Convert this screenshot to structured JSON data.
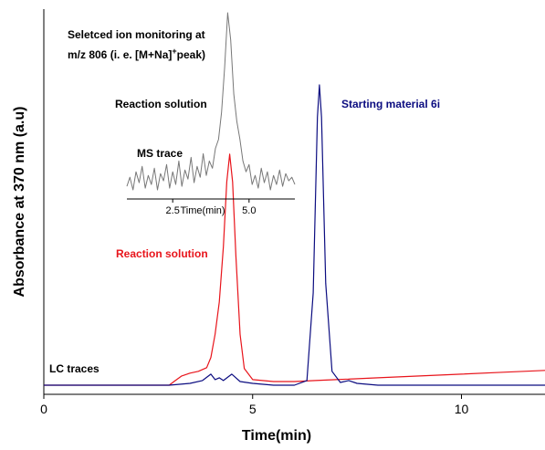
{
  "chart_data": [
    {
      "type": "line",
      "title": "",
      "xlabel": "Time(min)",
      "ylabel": "Absorbance at 370 nm (a.u)",
      "xlim": [
        0,
        12
      ],
      "x_ticks": [
        0,
        5,
        10
      ],
      "y_ticks": [],
      "grid": false,
      "legend": "none",
      "series": [
        {
          "name": "Reaction solution",
          "color": "#e8141b",
          "x": [
            0.0,
            1.0,
            2.0,
            3.0,
            3.15,
            3.3,
            3.5,
            3.7,
            3.9,
            4.0,
            4.1,
            4.2,
            4.3,
            4.38,
            4.45,
            4.52,
            4.6,
            4.7,
            4.8,
            5.0,
            5.5,
            6.0,
            6.5,
            7.0,
            8.0,
            9.0,
            10.0,
            11.0,
            12.0
          ],
          "y": [
            0.0,
            0.0,
            0.0,
            0.0,
            0.05,
            0.1,
            0.13,
            0.15,
            0.19,
            0.3,
            0.55,
            0.9,
            1.5,
            2.2,
            2.5,
            2.2,
            1.4,
            0.55,
            0.18,
            0.06,
            0.04,
            0.04,
            0.05,
            0.06,
            0.08,
            0.1,
            0.12,
            0.14,
            0.16
          ]
        },
        {
          "name": "Starting material 6i",
          "color": "#0b0c80",
          "x": [
            0.0,
            1.0,
            2.0,
            3.0,
            3.5,
            3.8,
            4.0,
            4.1,
            4.2,
            4.3,
            4.5,
            4.7,
            5.0,
            5.5,
            6.0,
            6.3,
            6.45,
            6.55,
            6.6,
            6.65,
            6.75,
            6.9,
            7.1,
            7.3,
            7.5,
            8.0,
            9.0,
            10.0,
            12.0
          ],
          "y": [
            0.0,
            0.0,
            0.0,
            0.0,
            0.02,
            0.05,
            0.12,
            0.06,
            0.08,
            0.05,
            0.12,
            0.04,
            0.02,
            0.0,
            0.0,
            0.05,
            1.0,
            2.9,
            3.25,
            2.9,
            1.1,
            0.15,
            0.03,
            0.05,
            0.02,
            0.0,
            0.0,
            0.0,
            0.0
          ]
        }
      ],
      "annotations": {
        "reaction_label": "Reaction solution",
        "starting_label": "Starting material 6i",
        "lc_label": "LC traces"
      }
    },
    {
      "type": "line",
      "title": "",
      "xlabel": "Time(min)",
      "x_ticks": [
        "2.5",
        "5.0"
      ],
      "xlim": [
        1.0,
        6.5
      ],
      "legend": "none",
      "series": [
        {
          "name": "MS trace",
          "color": "#777777",
          "x": [
            1.0,
            1.1,
            1.2,
            1.3,
            1.4,
            1.5,
            1.6,
            1.7,
            1.8,
            1.9,
            2.0,
            2.1,
            2.2,
            2.3,
            2.4,
            2.5,
            2.6,
            2.7,
            2.8,
            2.9,
            3.0,
            3.1,
            3.2,
            3.3,
            3.4,
            3.5,
            3.6,
            3.7,
            3.8,
            3.9,
            4.0,
            4.1,
            4.2,
            4.3,
            4.4,
            4.5,
            4.6,
            4.7,
            4.8,
            4.9,
            5.0,
            5.1,
            5.2,
            5.3,
            5.4,
            5.5,
            5.6,
            5.7,
            5.8,
            5.9,
            6.0,
            6.1,
            6.2,
            6.3,
            6.4,
            6.5
          ],
          "y": [
            0.04,
            0.09,
            0.02,
            0.12,
            0.06,
            0.15,
            0.03,
            0.1,
            0.05,
            0.14,
            0.02,
            0.11,
            0.07,
            0.16,
            0.03,
            0.12,
            0.05,
            0.18,
            0.04,
            0.13,
            0.08,
            0.2,
            0.06,
            0.15,
            0.09,
            0.22,
            0.1,
            0.18,
            0.14,
            0.25,
            0.3,
            0.45,
            0.7,
            1.0,
            0.85,
            0.55,
            0.4,
            0.3,
            0.18,
            0.12,
            0.16,
            0.05,
            0.1,
            0.03,
            0.14,
            0.06,
            0.12,
            0.02,
            0.1,
            0.05,
            0.13,
            0.04,
            0.11,
            0.07,
            0.09,
            0.05
          ]
        }
      ],
      "annotations": {
        "sim_line1": "Seletced ion monitoring at",
        "sim_line2_prefix": "m/z 806 (i. e. [M+Na]",
        "sim_line2_sup": "+",
        "sim_line2_suffix": "peak)",
        "reaction_label": "Reaction solution",
        "ms_label": "MS trace"
      }
    }
  ]
}
